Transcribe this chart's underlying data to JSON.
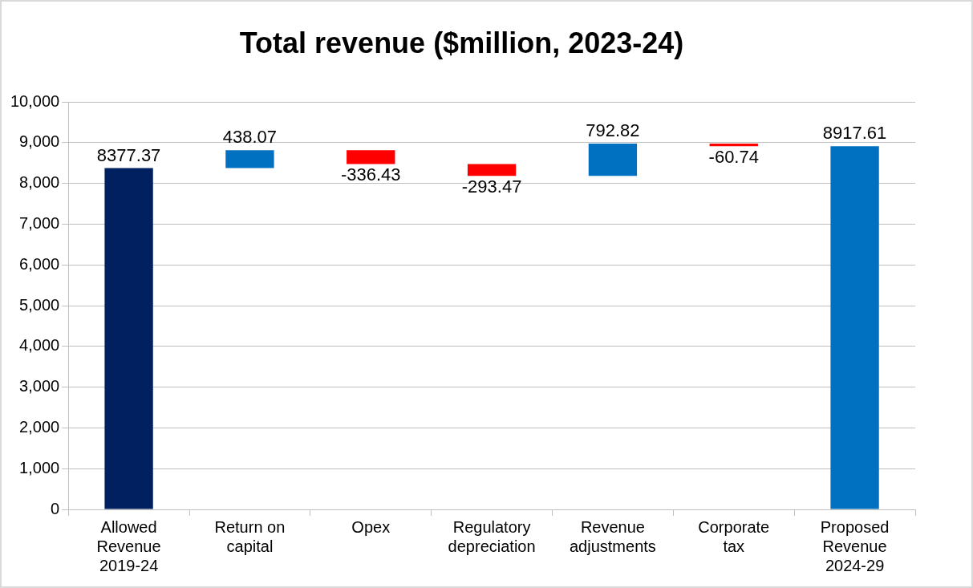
{
  "chart_data": {
    "type": "bar",
    "title": "Total revenue ($million, 2023-24)",
    "categories": [
      "Allowed Revenue 2019-24",
      "Return on capital",
      "Opex",
      "Regulatory depreciation",
      "Revenue adjustments",
      "Corporate tax",
      "Proposed Revenue 2024-29"
    ],
    "values": [
      8377.37,
      438.07,
      -336.43,
      -293.47,
      792.82,
      -60.74,
      8917.61
    ],
    "base": [
      0,
      8377.37,
      8815.44,
      8479.01,
      8185.54,
      8978.36,
      0
    ],
    "colors": [
      "#002060",
      "#0070c0",
      "#ff0000",
      "#ff0000",
      "#0070c0",
      "#ff0000",
      "#0070c0"
    ],
    "ylim": [
      0,
      10000
    ],
    "yticks": [
      {
        "value": 0,
        "label": "0"
      },
      {
        "value": 1000,
        "label": "1,000"
      },
      {
        "value": 2000,
        "label": "2,000"
      },
      {
        "value": 3000,
        "label": "3,000"
      },
      {
        "value": 4000,
        "label": "4,000"
      },
      {
        "value": 5000,
        "label": "5,000"
      },
      {
        "value": 6000,
        "label": "6,000"
      },
      {
        "value": 7000,
        "label": "7,000"
      },
      {
        "value": 8000,
        "label": "8,000"
      },
      {
        "value": 9000,
        "label": "9,000"
      },
      {
        "value": 10000,
        "label": "10,000"
      }
    ],
    "grid": "y",
    "data_labels": true,
    "legend": false
  }
}
